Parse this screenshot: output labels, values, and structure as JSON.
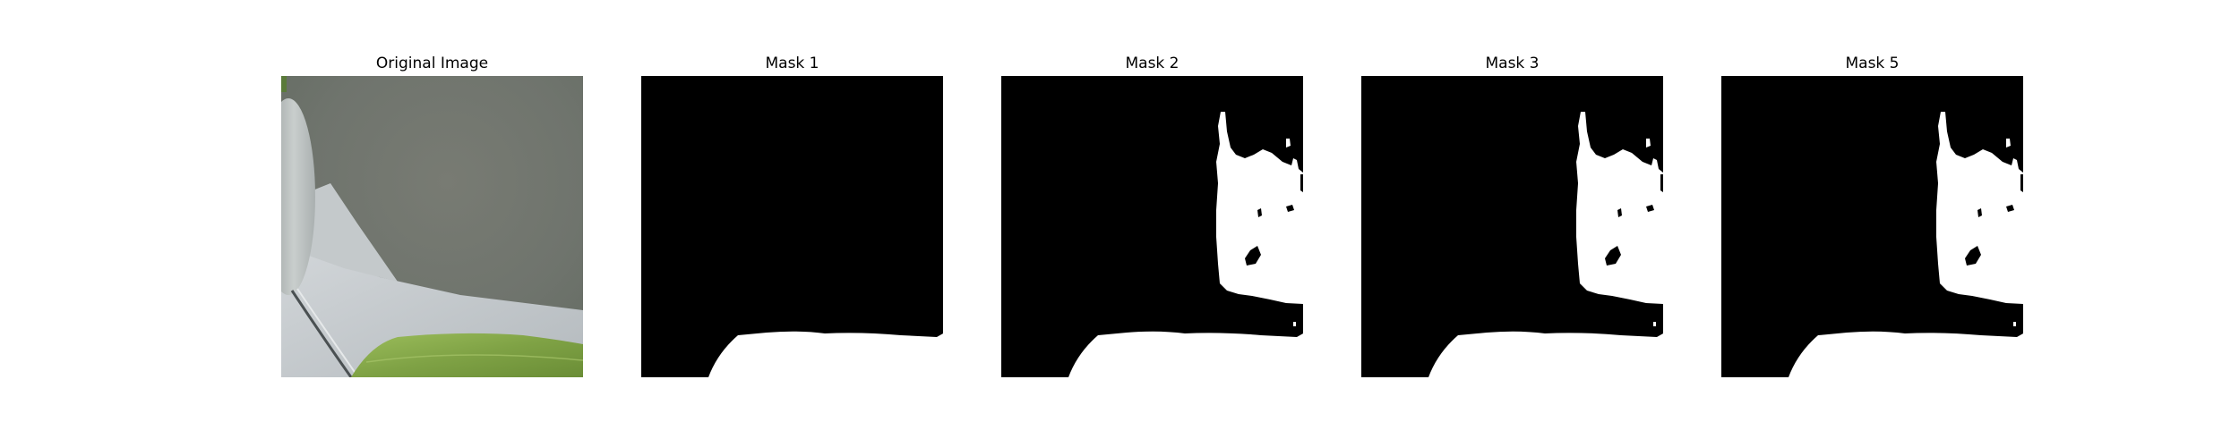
{
  "panels": [
    {
      "title": "Original Image",
      "kind": "photo"
    },
    {
      "title": "Mask 1",
      "kind": "mask"
    },
    {
      "title": "Mask 2",
      "kind": "mask"
    },
    {
      "title": "Mask 3",
      "kind": "mask"
    },
    {
      "title": "Mask 5",
      "kind": "mask"
    }
  ],
  "colors": {
    "background": "#ffffff",
    "mask_off": "#000000",
    "mask_on": "#ffffff",
    "photo_backdrop": "#737871",
    "photo_leaf": "#7fa24a",
    "photo_surface": "#c3c8cb"
  }
}
